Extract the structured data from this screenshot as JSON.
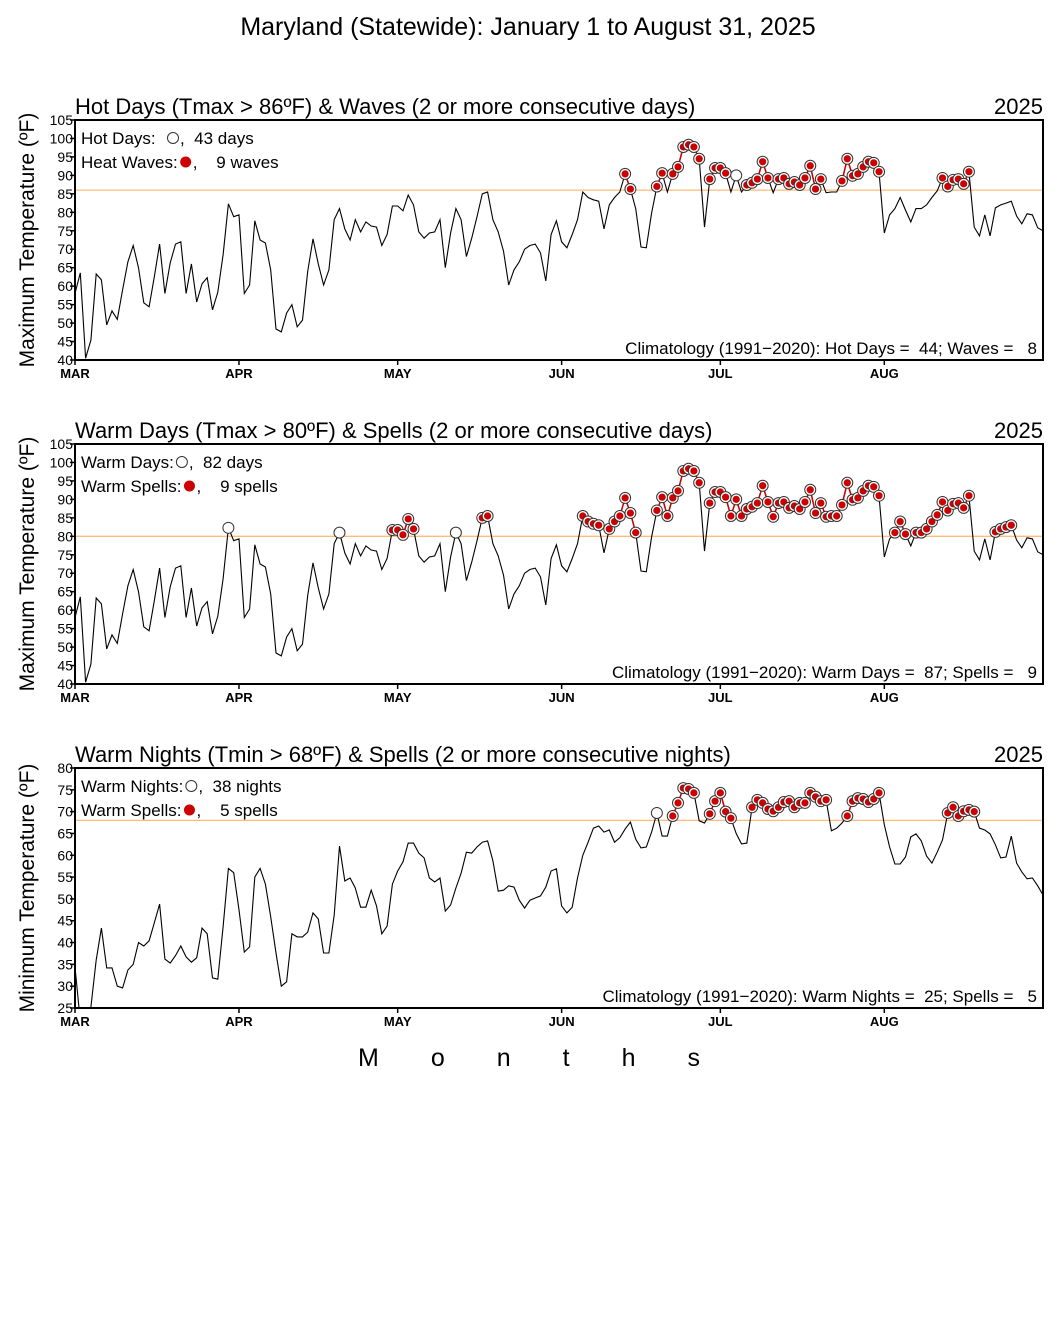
{
  "page_title": "Maryland (Statewide): January 1 to August 31, 2025",
  "x_axis_label": "Months",
  "chart_data": {
    "type": "line",
    "x_start": "Mar 1",
    "x_end": "Aug 31",
    "months": [
      {
        "label": "MAR",
        "day": 0
      },
      {
        "label": "APR",
        "day": 31
      },
      {
        "label": "MAY",
        "day": 61
      },
      {
        "label": "JUN",
        "day": 92
      },
      {
        "label": "JUL",
        "day": 122
      },
      {
        "label": "AUG",
        "day": 153
      }
    ],
    "series": {
      "tmax": [
        58,
        63.6,
        40.5,
        45.4,
        63.3,
        61.7,
        49.5,
        53.3,
        51,
        59,
        66.6,
        71,
        65,
        55.5,
        54.4,
        62.5,
        71.4,
        58,
        66.3,
        71.4,
        72,
        58,
        66,
        55.7,
        60.6,
        62.3,
        53.6,
        58.4,
        68.5,
        82.3,
        78.8,
        79.3,
        58,
        60.3,
        77.7,
        72.5,
        71.7,
        64.4,
        48.4,
        47.6,
        52.7,
        55,
        49,
        50.8,
        64,
        72.8,
        66,
        60.3,
        64.4,
        78,
        81,
        75.5,
        72.5,
        78,
        74.7,
        77.4,
        76.3,
        76,
        71,
        74,
        81.7,
        81.7,
        80.4,
        84.7,
        82,
        74.7,
        73,
        74.4,
        74.7,
        78,
        65,
        74.4,
        81,
        78,
        68,
        73,
        78.8,
        85,
        85.5,
        78,
        74.7,
        69.5,
        60.3,
        64.4,
        66.6,
        70,
        71,
        71.4,
        69,
        61.4,
        74,
        77.7,
        72,
        70.4,
        74,
        78,
        85.5,
        84,
        83.4,
        83,
        75.5,
        82,
        84,
        85.5,
        90.4,
        86.3,
        81,
        70.6,
        70.4,
        79.8,
        87,
        90.6,
        85.5,
        90.4,
        92.3,
        97.7,
        98.3,
        97.7,
        94.5,
        76,
        89,
        92,
        92,
        90.6,
        85.5,
        90,
        85.5,
        87.4,
        88,
        89,
        93.7,
        89.3,
        85.3,
        89,
        89.3,
        87.7,
        88.2,
        87.4,
        89.3,
        92.6,
        86.3,
        89,
        85.3,
        85.5,
        85.5,
        88.5,
        94.5,
        89.9,
        90.4,
        92.3,
        93.7,
        93.4,
        91,
        74.4,
        79.3,
        81,
        84,
        80.6,
        77.4,
        81,
        81,
        82,
        84,
        85.8,
        89.3,
        87,
        88.8,
        89,
        87.7,
        91,
        76,
        73.6,
        79.3,
        73.6,
        81.2,
        82,
        82.5,
        83,
        79,
        76.9,
        79.6,
        79.3,
        75.8,
        75
      ],
      "tmin": [
        34.4,
        22,
        23,
        25.2,
        36,
        43.3,
        34.2,
        34.2,
        30,
        29.6,
        33.7,
        35,
        40,
        39.2,
        40.4,
        44.5,
        48.8,
        36.2,
        35.3,
        37,
        39.2,
        36.7,
        35.5,
        36.5,
        43.3,
        42,
        31.9,
        31.6,
        43.6,
        57,
        56,
        47.5,
        37.8,
        39,
        55,
        57,
        53.4,
        45.9,
        37.6,
        30,
        31,
        42,
        41.3,
        41.3,
        42.4,
        46.8,
        45.4,
        37.6,
        37.6,
        46.3,
        62.1,
        54.1,
        54.8,
        52.5,
        48.1,
        48.1,
        52,
        48.4,
        42,
        43.8,
        53.4,
        56.4,
        58.5,
        62.8,
        62.8,
        60.5,
        59.4,
        54.8,
        53.9,
        54.8,
        47.2,
        48.6,
        52.5,
        55.9,
        60.7,
        60.5,
        61.9,
        63,
        63.3,
        58.7,
        51.8,
        52,
        53,
        52.7,
        49.7,
        47.9,
        49.7,
        50.2,
        50.7,
        52.7,
        56.4,
        56.9,
        48.4,
        46.8,
        48.1,
        54.8,
        60,
        63,
        66.2,
        66.7,
        65.3,
        65.8,
        63,
        64,
        66,
        67.6,
        63.7,
        61.7,
        61.9,
        65.3,
        69.7,
        64.4,
        64.4,
        69,
        72,
        75.4,
        75.2,
        74.3,
        67.9,
        67.4,
        69.5,
        72.4,
        74.3,
        70,
        68.5,
        65,
        62.6,
        62.8,
        71,
        72.7,
        72,
        70.6,
        70.1,
        71,
        72.2,
        72.4,
        71,
        72,
        72,
        74.3,
        73.4,
        72.4,
        72.7,
        65.6,
        66.2,
        67.4,
        69,
        72.4,
        73.1,
        72.9,
        72.2,
        72.9,
        74.3,
        67,
        61.9,
        58,
        58,
        59.6,
        64.2,
        64.9,
        63.3,
        59.8,
        58.2,
        60.7,
        63.5,
        69.7,
        71,
        69,
        70.1,
        70.4,
        70,
        66.2,
        65.8,
        64.9,
        62.4,
        59.4,
        59.6,
        64.4,
        58.2,
        56.2,
        54.6,
        54.8,
        53,
        50.9
      ]
    },
    "panels": [
      {
        "title": "Hot Days (Tmax > 86ºF) & Waves (2 or more consecutive days)",
        "year": "2025",
        "ylabel": "Maximum Temperature (ºF)",
        "ylim": [
          40,
          105
        ],
        "ytick_step": 5,
        "threshold": 86,
        "series": "tmax",
        "legend": [
          {
            "label": "Hot Days:",
            "marker": "open-circle",
            "value": ",  43 days"
          },
          {
            "label": "Heat Waves:",
            "marker": "red-dot",
            "value": ",    9 waves"
          }
        ],
        "climatology": "Climatology (1991−2020): Hot Days =  44; Waves =   8"
      },
      {
        "title": "Warm Days (Tmax > 80ºF) & Spells (2 or more consecutive days)",
        "year": "2025",
        "ylabel": "Maximum Temperature (ºF)",
        "ylim": [
          40,
          105
        ],
        "ytick_step": 5,
        "threshold": 80,
        "series": "tmax",
        "legend": [
          {
            "label": "Warm Days:",
            "marker": "open-circle",
            "value": ",  82 days"
          },
          {
            "label": "Warm Spells:",
            "marker": "red-dot",
            "value": ",    9 spells"
          }
        ],
        "climatology": "Climatology (1991−2020): Warm Days =  87; Spells =   9"
      },
      {
        "title": "Warm Nights (Tmin > 68ºF) & Spells (2 or more consecutive nights)",
        "year": "2025",
        "ylabel": "Minimum Temperature (ºF)",
        "ylim": [
          25,
          80
        ],
        "ytick_step": 5,
        "threshold": 68,
        "series": "tmin",
        "legend": [
          {
            "label": "Warm Nights:",
            "marker": "open-circle",
            "value": ",  38 nights"
          },
          {
            "label": "Warm Spells:",
            "marker": "red-dot",
            "value": ",    5 spells"
          }
        ],
        "climatology": "Climatology (1991−2020): Warm Nights =  25; Spells =   5"
      }
    ],
    "colors": {
      "line": "#000000",
      "threshold": "#ffbb77",
      "event": "#cc0000"
    }
  }
}
